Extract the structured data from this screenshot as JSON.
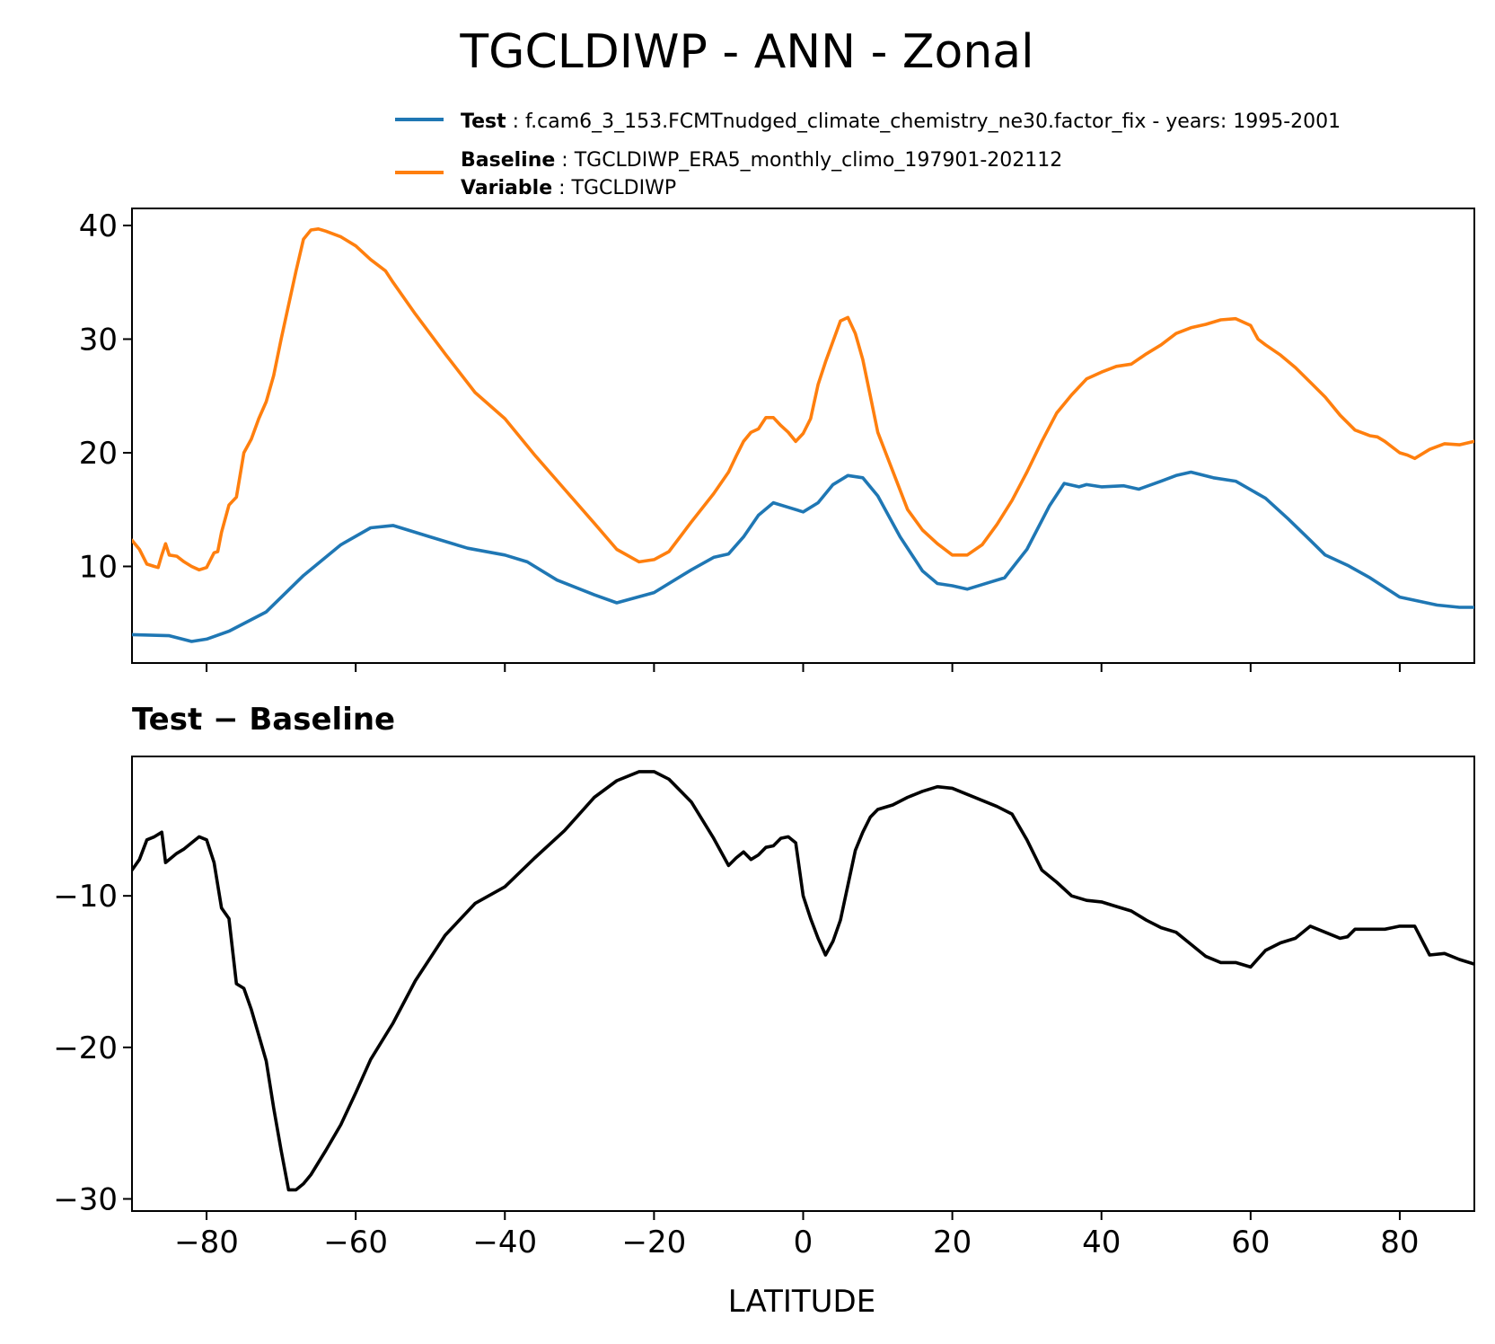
{
  "chart_data": {
    "title": "TGCLDIWP - ANN - Zonal",
    "xlabel": "LATITUDE",
    "xlim": [
      -90,
      90
    ],
    "xticks": [
      -80,
      -60,
      -40,
      -20,
      0,
      20,
      40,
      60,
      80
    ],
    "xtick_labels": [
      "−80",
      "−60",
      "−40",
      "−20",
      "0",
      "20",
      "40",
      "60",
      "80"
    ],
    "legend": {
      "placement": "top-right, above upper panel",
      "entries": [
        {
          "bold": "Test",
          "text": "f.cam6_3_153.FCMTnudged_climate_chemistry_ne30.factor_fix - years: 1995-2001",
          "color": "#1f77b4"
        },
        {
          "bold": "Baseline",
          "text": "TGCLDIWP_ERA5_monthly_climo_197901-202112",
          "color": "#ff7f0e"
        },
        {
          "bold": "Variable",
          "text": "TGCLDIWP",
          "color": null
        }
      ]
    },
    "panels": [
      {
        "type": "line",
        "ylim": [
          1.5,
          41.5
        ],
        "yticks": [
          10,
          20,
          30,
          40
        ],
        "ytick_labels": [
          "10",
          "20",
          "30",
          "40"
        ],
        "series": [
          {
            "name": "Test",
            "color": "#1f77b4",
            "x": [
              -90,
              -85,
              -82,
              -80,
              -77,
              -72,
              -67,
              -62,
              -58,
              -55,
              -50,
              -45,
              -40,
              -37,
              -33,
              -28,
              -25,
              -20,
              -15,
              -12,
              -10,
              -8,
              -6,
              -4,
              -2,
              0,
              2,
              4,
              6,
              8,
              10,
              13,
              16,
              18,
              20,
              22,
              25,
              27,
              30,
              33,
              35,
              37,
              38,
              40,
              43,
              45,
              48,
              50,
              52,
              55,
              58,
              62,
              65,
              68,
              70,
              73,
              76,
              80,
              85,
              88,
              90
            ],
            "y": [
              4.0,
              3.9,
              3.4,
              3.6,
              4.3,
              6.0,
              9.2,
              11.9,
              13.4,
              13.6,
              12.6,
              11.6,
              11.0,
              10.4,
              8.8,
              7.5,
              6.8,
              7.7,
              9.7,
              10.8,
              11.1,
              12.6,
              14.5,
              15.6,
              15.2,
              14.8,
              15.6,
              17.2,
              18.0,
              17.8,
              16.2,
              12.6,
              9.6,
              8.5,
              8.3,
              8.0,
              8.6,
              9.0,
              11.5,
              15.3,
              17.3,
              17.0,
              17.2,
              17.0,
              17.1,
              16.8,
              17.5,
              18.0,
              18.3,
              17.8,
              17.5,
              16.0,
              14.2,
              12.3,
              11.0,
              10.1,
              9.0,
              7.3,
              6.6,
              6.4,
              6.4
            ]
          },
          {
            "name": "Baseline",
            "color": "#ff7f0e",
            "x": [
              -90,
              -89,
              -88,
              -87,
              -86.5,
              -86,
              -85.5,
              -85,
              -84,
              -83,
              -82,
              -81,
              -80,
              -79,
              -78.5,
              -78,
              -77,
              -76,
              -75,
              -74,
              -73,
              -72,
              -71,
              -70,
              -69,
              -68,
              -67,
              -66,
              -65,
              -64,
              -62,
              -60,
              -58,
              -56,
              -55,
              -52,
              -48,
              -44,
              -40,
              -36,
              -32,
              -28,
              -25,
              -22,
              -20,
              -18,
              -15,
              -12,
              -10,
              -9,
              -8,
              -7,
              -6,
              -5,
              -4,
              -3,
              -2,
              -1,
              0,
              1,
              2,
              3,
              4,
              5,
              6,
              7,
              8,
              9,
              10,
              12,
              14,
              16,
              18,
              20,
              22,
              24,
              26,
              28,
              30,
              32,
              34,
              36,
              38,
              40,
              42,
              44,
              46,
              48,
              50,
              52,
              54,
              56,
              58,
              60,
              61,
              62,
              64,
              66,
              68,
              70,
              72,
              74,
              76,
              77,
              78,
              80,
              81,
              82,
              84,
              86,
              88,
              90
            ],
            "y": [
              12.3,
              11.5,
              10.2,
              10.0,
              9.9,
              11.0,
              12.0,
              11.0,
              10.9,
              10.4,
              10.0,
              9.7,
              9.9,
              11.2,
              11.3,
              13.0,
              15.4,
              16.1,
              20.0,
              21.2,
              23.0,
              24.5,
              26.8,
              30.0,
              33.0,
              36.0,
              38.8,
              39.6,
              39.7,
              39.5,
              39.0,
              38.2,
              37.0,
              36.0,
              35.0,
              32.2,
              28.7,
              25.3,
              23.0,
              19.8,
              16.8,
              13.8,
              11.5,
              10.4,
              10.6,
              11.3,
              13.9,
              16.4,
              18.3,
              19.7,
              21.0,
              21.8,
              22.1,
              23.1,
              23.1,
              22.4,
              21.8,
              21.0,
              21.7,
              23.0,
              26.0,
              28.0,
              29.8,
              31.6,
              31.9,
              30.5,
              28.2,
              25.0,
              21.8,
              18.4,
              15.0,
              13.2,
              12.0,
              11.0,
              11.0,
              11.9,
              13.7,
              15.8,
              18.3,
              21.0,
              23.5,
              25.1,
              26.5,
              27.1,
              27.6,
              27.8,
              28.7,
              29.5,
              30.5,
              31.0,
              31.3,
              31.7,
              31.8,
              31.2,
              30.0,
              29.5,
              28.6,
              27.5,
              26.2,
              24.9,
              23.3,
              22.0,
              21.5,
              21.4,
              21.0,
              20.0,
              19.8,
              19.5,
              20.3,
              20.8,
              20.7,
              21.0
            ]
          }
        ]
      },
      {
        "type": "line",
        "title": "Test − Baseline",
        "ylim": [
          -30.8,
          -0.8
        ],
        "yticks": [
          -10,
          -20,
          -30
        ],
        "ytick_labels": [
          "−10",
          "−20",
          "−30"
        ],
        "series": [
          {
            "name": "Test − Baseline",
            "color": "#000000",
            "x": [
              -90,
              -89,
              -88,
              -87,
              -86,
              -85.5,
              -85,
              -84,
              -83,
              -82,
              -81,
              -80,
              -79,
              -78,
              -77,
              -76,
              -75,
              -74,
              -73,
              -72,
              -71,
              -70,
              -69,
              -68,
              -67,
              -66,
              -65,
              -64,
              -62,
              -60,
              -58,
              -56,
              -55,
              -52,
              -48,
              -44,
              -40,
              -36,
              -32,
              -28,
              -25,
              -22,
              -20,
              -18,
              -15,
              -12,
              -10,
              -9,
              -8,
              -7,
              -6,
              -5,
              -4,
              -3,
              -2,
              -1,
              0,
              1,
              2,
              3,
              4,
              5,
              6,
              7,
              8,
              9,
              10,
              12,
              14,
              16,
              18,
              20,
              22,
              24,
              26,
              28,
              30,
              32,
              34,
              36,
              38,
              40,
              42,
              44,
              46,
              48,
              50,
              52,
              54,
              56,
              58,
              60,
              62,
              64,
              66,
              68,
              70,
              72,
              73,
              74,
              76,
              78,
              79,
              80,
              82,
              84,
              86,
              88,
              90
            ],
            "y": [
              -8.3,
              -7.6,
              -6.3,
              -6.1,
              -5.8,
              -7.8,
              -7.6,
              -7.2,
              -6.9,
              -6.5,
              -6.1,
              -6.3,
              -7.8,
              -10.8,
              -11.5,
              -15.8,
              -16.1,
              -17.5,
              -19.2,
              -20.9,
              -24.0,
              -26.8,
              -29.4,
              -29.4,
              -29.0,
              -28.4,
              -27.6,
              -26.8,
              -25.1,
              -23.0,
              -20.8,
              -19.2,
              -18.4,
              -15.6,
              -12.6,
              -10.5,
              -9.4,
              -7.5,
              -5.7,
              -3.5,
              -2.4,
              -1.8,
              -1.8,
              -2.3,
              -3.8,
              -6.2,
              -8.0,
              -7.5,
              -7.1,
              -7.6,
              -7.3,
              -6.8,
              -6.7,
              -6.2,
              -6.1,
              -6.5,
              -10.0,
              -11.5,
              -12.8,
              -13.9,
              -13.0,
              -11.6,
              -9.3,
              -7.0,
              -5.8,
              -4.8,
              -4.3,
              -4.0,
              -3.5,
              -3.1,
              -2.8,
              -2.9,
              -3.3,
              -3.7,
              -4.1,
              -4.6,
              -6.3,
              -8.3,
              -9.1,
              -10.0,
              -10.3,
              -10.4,
              -10.7,
              -11.0,
              -11.6,
              -12.1,
              -12.4,
              -13.2,
              -14.0,
              -14.4,
              -14.4,
              -14.7,
              -13.6,
              -13.1,
              -12.8,
              -12.0,
              -12.4,
              -12.8,
              -12.7,
              -12.2,
              -12.2,
              -12.2,
              -12.1,
              -12.0,
              -12.0,
              -13.9,
              -13.8,
              -14.2,
              -14.5
            ]
          }
        ]
      }
    ]
  }
}
